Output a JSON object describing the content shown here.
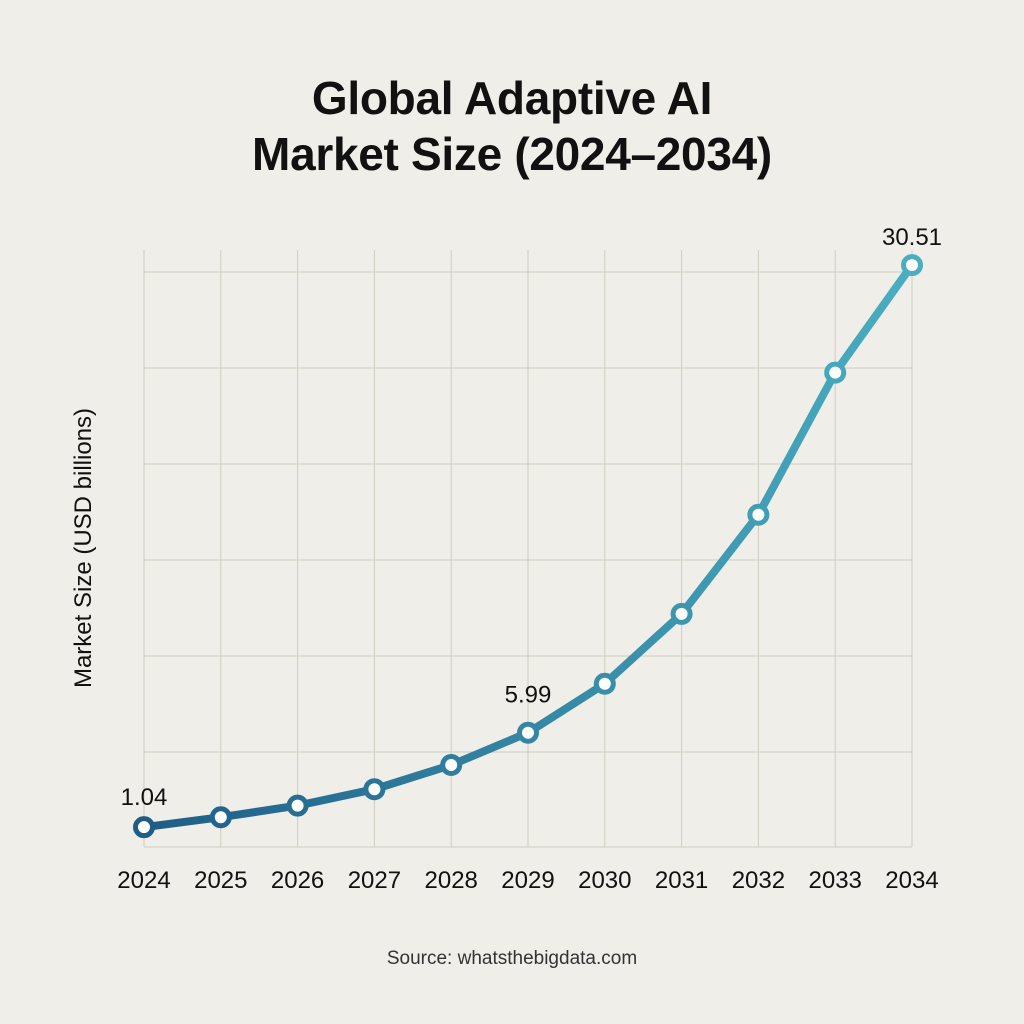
{
  "chart_data": {
    "type": "line",
    "title": [
      "Global Adaptive AI",
      "Market Size (2024–2034)"
    ],
    "xlabel": "",
    "ylabel": "Market Size (USD billions)",
    "x": [
      "2024",
      "2025",
      "2026",
      "2027",
      "2028",
      "2029",
      "2030",
      "2031",
      "2032",
      "2033",
      "2034"
    ],
    "series": [
      {
        "values": [
          1.04,
          1.56,
          2.17,
          3.03,
          4.3,
          5.99,
          8.56,
          12.22,
          17.42,
          24.87,
          30.51
        ]
      }
    ],
    "data_labels": [
      {
        "index": 0,
        "text": "1.04"
      },
      {
        "index": 5,
        "text": "5.99"
      },
      {
        "index": 10,
        "text": "30.51"
      }
    ],
    "ylim": [
      0,
      31.3
    ],
    "y_tick_labels_shown": false,
    "grid": true,
    "legend": "none",
    "colors": {
      "background": "#efeee8",
      "grid": "#cfcdbf",
      "line_start": "#1f5d87",
      "line_end": "#4aaec0",
      "marker_fill": "#ffffff",
      "text": "#111111"
    }
  },
  "source": "Source: whatsthebigdata.com"
}
